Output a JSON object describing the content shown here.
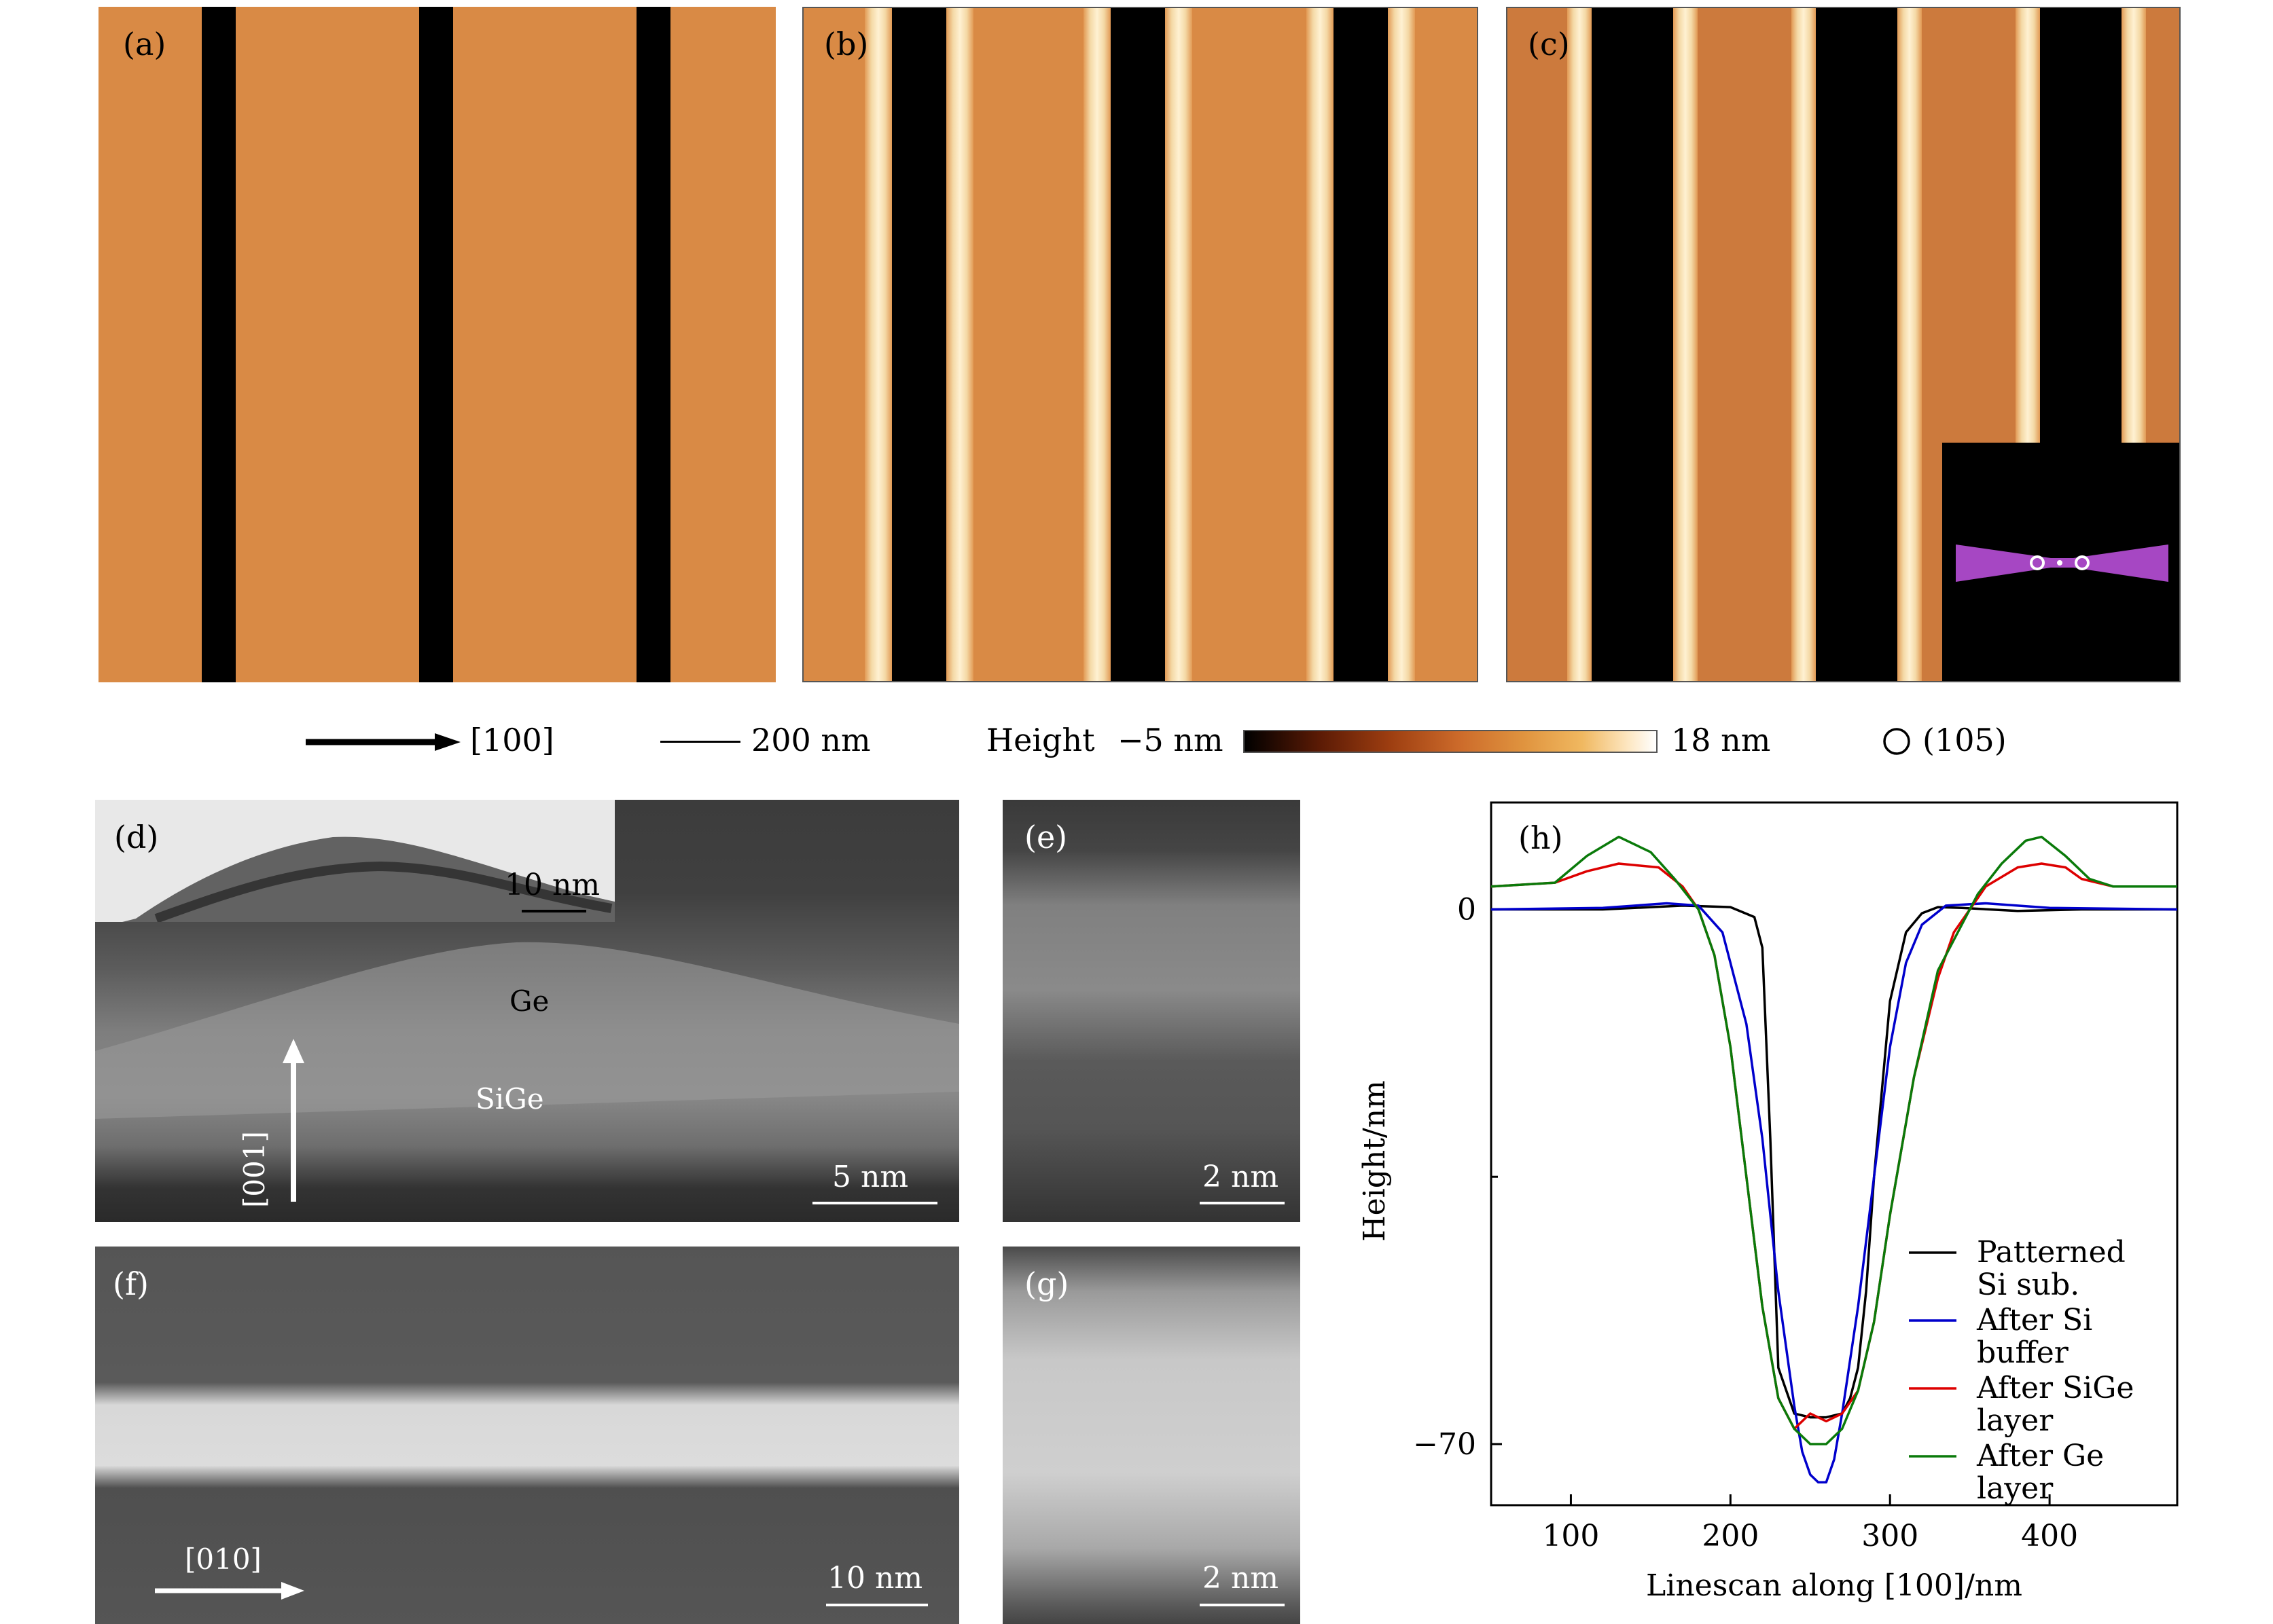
{
  "figure": {
    "panels": {
      "a": {
        "label": "(a)"
      },
      "b": {
        "label": "(b)"
      },
      "c": {
        "label": "(c)"
      },
      "d": {
        "label": "(d)",
        "inset_scale": "10 nm",
        "ge_label": "Ge",
        "sige_label": "SiGe",
        "axis_label": "[001]",
        "scale": "5 nm"
      },
      "e": {
        "label": "(e)",
        "scale": "2 nm"
      },
      "f": {
        "label": "(f)",
        "axis_label": "[010]",
        "scale": "10 nm"
      },
      "g": {
        "label": "(g)",
        "scale": "2 nm"
      },
      "h": {
        "label": "(h)"
      }
    },
    "legend_row": {
      "direction_label": "[100]",
      "scale_label": "200 nm",
      "height_label": "Height",
      "colorbar_min": "−5 nm",
      "colorbar_max": "18 nm",
      "facet_label": "(105)"
    },
    "colors": {
      "afm_base": "#d98a45",
      "inset_magenta": "#b84fd8"
    }
  },
  "chart_data": {
    "type": "line",
    "xlabel": "Linescan along [100]/nm",
    "ylabel": "Height/nm",
    "xlim": [
      50,
      480
    ],
    "ylim": [
      -78,
      14
    ],
    "xticks": [
      100,
      200,
      300,
      400
    ],
    "yticks": [
      0,
      -70
    ],
    "legend_position": "bottom-right",
    "series": [
      {
        "name": "Patterned Si sub.",
        "color": "#000000",
        "x": [
          50,
          120,
          170,
          200,
          215,
          220,
          225,
          230,
          240,
          250,
          260,
          270,
          275,
          280,
          285,
          290,
          300,
          310,
          320,
          330,
          345,
          380,
          420,
          480
        ],
        "y": [
          0,
          0,
          0.5,
          0.3,
          -1,
          -5,
          -30,
          -60,
          -66,
          -66.5,
          -66.5,
          -66,
          -64,
          -60,
          -50,
          -35,
          -12,
          -3,
          -0.5,
          0.3,
          0.2,
          -0.2,
          0,
          0
        ]
      },
      {
        "name": "After Si buffer",
        "color": "#0000cc",
        "x": [
          50,
          120,
          160,
          180,
          195,
          210,
          220,
          230,
          240,
          245,
          250,
          255,
          260,
          265,
          270,
          280,
          290,
          300,
          310,
          320,
          335,
          360,
          400,
          480
        ],
        "y": [
          0,
          0.2,
          0.8,
          0.5,
          -3,
          -15,
          -30,
          -50,
          -65,
          -71,
          -74,
          -75,
          -75,
          -72,
          -66,
          -52,
          -35,
          -18,
          -7,
          -2,
          0.5,
          0.8,
          0.2,
          0
        ]
      },
      {
        "name": "After SiGe layer",
        "color": "#dd0000",
        "x": [
          50,
          90,
          110,
          130,
          155,
          170,
          180,
          190,
          200,
          210,
          220,
          230,
          240,
          250,
          260,
          270,
          280,
          290,
          300,
          315,
          330,
          340,
          350,
          360,
          380,
          395,
          410,
          420,
          440,
          480
        ],
        "y": [
          3,
          3.5,
          5,
          6,
          5.5,
          3,
          0,
          -6,
          -18,
          -35,
          -52,
          -64,
          -68,
          -66,
          -67,
          -66,
          -63,
          -54,
          -40,
          -22,
          -9,
          -3,
          0,
          3,
          5.5,
          6,
          5.5,
          4,
          3,
          3
        ]
      },
      {
        "name": "After Ge layer",
        "color": "#0a7a0a",
        "x": [
          50,
          90,
          110,
          130,
          150,
          165,
          180,
          190,
          200,
          210,
          220,
          230,
          240,
          250,
          260,
          270,
          280,
          290,
          300,
          315,
          330,
          345,
          355,
          370,
          385,
          395,
          410,
          425,
          440,
          480
        ],
        "y": [
          3,
          3.5,
          7,
          9.5,
          7.5,
          4,
          0,
          -6,
          -18,
          -35,
          -52,
          -64,
          -68,
          -70,
          -70,
          -68,
          -63,
          -54,
          -40,
          -22,
          -8,
          -2,
          2,
          6,
          9,
          9.5,
          7,
          4,
          3,
          3
        ]
      }
    ]
  }
}
